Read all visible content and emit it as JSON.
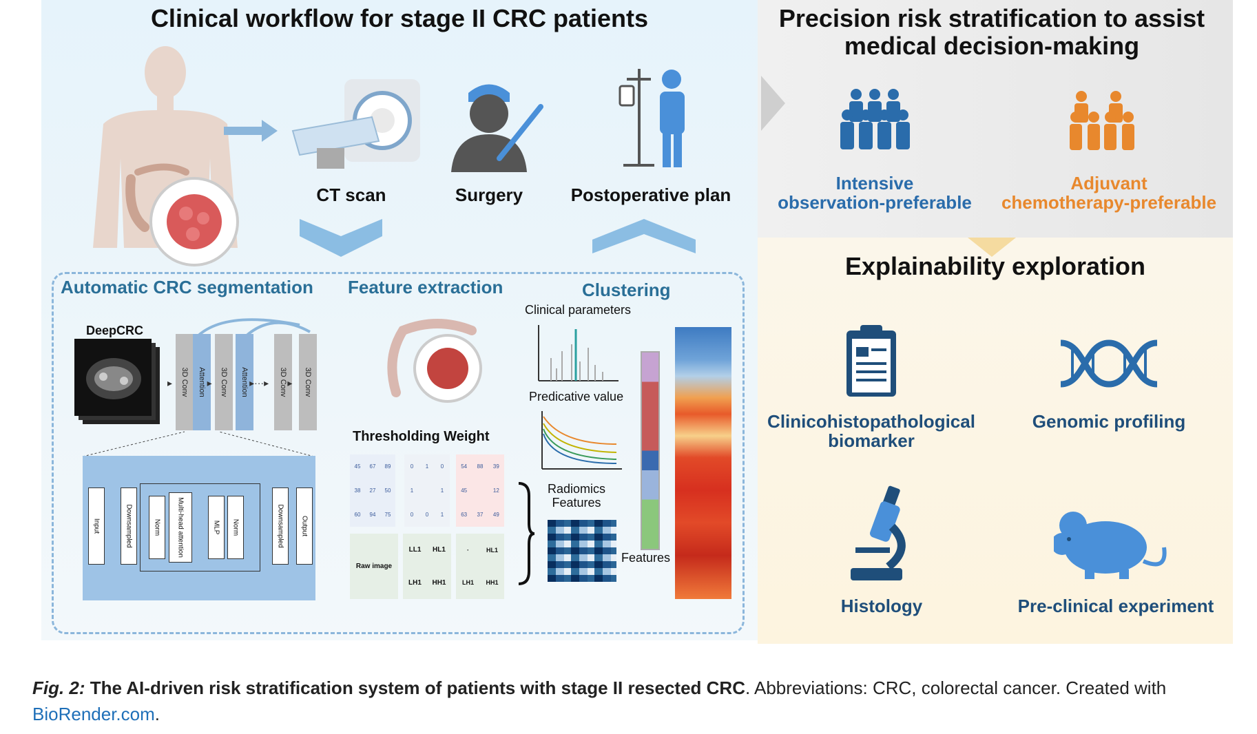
{
  "left_title": "Clinical workflow for stage II CRC patients",
  "right_title_line1": "Precision risk stratification to assist",
  "right_title_line2": "medical decision-making",
  "workflow": {
    "ct_scan": "CT scan",
    "surgery": "Surgery",
    "postoperative": "Postoperative plan"
  },
  "groups": {
    "intensive_line1": "Intensive",
    "intensive_line2": "observation-preferable",
    "adjuvant_line1": "Adjuvant",
    "adjuvant_line2": "chemotherapy-preferable"
  },
  "explain": {
    "title": "Explainability exploration",
    "clinico_line1": "Clinicohistopathological",
    "clinico_line2": "biomarker",
    "genomic": "Genomic profiling",
    "histology": "Histology",
    "preclinical": "Pre-clinical experiment"
  },
  "pipeline": {
    "segmentation": "Automatic CRC segmentation",
    "feature_extraction": "Feature extraction",
    "clustering": "Clustering",
    "deepcrc": "DeepCRC",
    "conv1": "3D Conv",
    "att1": "Attention",
    "conv2": "3D Conv",
    "att2": "Attention",
    "conv3": "3D Conv",
    "conv4": "3D Conv",
    "input": "Input",
    "down1": "Downsampled",
    "norm1": "Norm",
    "mha": "Multi-head attention",
    "mlp": "MLP",
    "norm2": "Norm",
    "down2": "Downsampled",
    "output": "Output",
    "thresholding": "Thresholding Weight",
    "raw_image": "Raw image",
    "ll1": "LL1",
    "hl1": "HL1",
    "lh1": "LH1",
    "hh1": "HH1",
    "hl1b": "HL1",
    "lh1b": "LH1",
    "hh1b": "HH1",
    "clinical_params": "Clinical parameters",
    "predictive": "Predicative value",
    "radiomics_line1": "Radiomics",
    "radiomics_line2": "Features",
    "features": "Features",
    "grid_a": [
      "45",
      "67",
      "89",
      "38",
      "27",
      "50",
      "60",
      "94",
      "75"
    ],
    "grid_b": [
      "0",
      "1",
      "0",
      "1",
      "",
      "1",
      "0",
      "0",
      "1"
    ],
    "grid_c": [
      "54",
      "88",
      "39",
      "45",
      "",
      "12",
      "63",
      "37",
      "49"
    ]
  },
  "caption": {
    "fig": "Fig. 2:",
    "bold": "The AI-driven risk stratification system of patients with stage II resected CRC",
    "rest": ". Abbreviations: CRC, colorectal cancer. Created with",
    "link": "BioRender.com",
    "end": "."
  },
  "colors": {
    "blue": "#2a6cab",
    "orange": "#e8882d",
    "section": "#2a6f97"
  }
}
